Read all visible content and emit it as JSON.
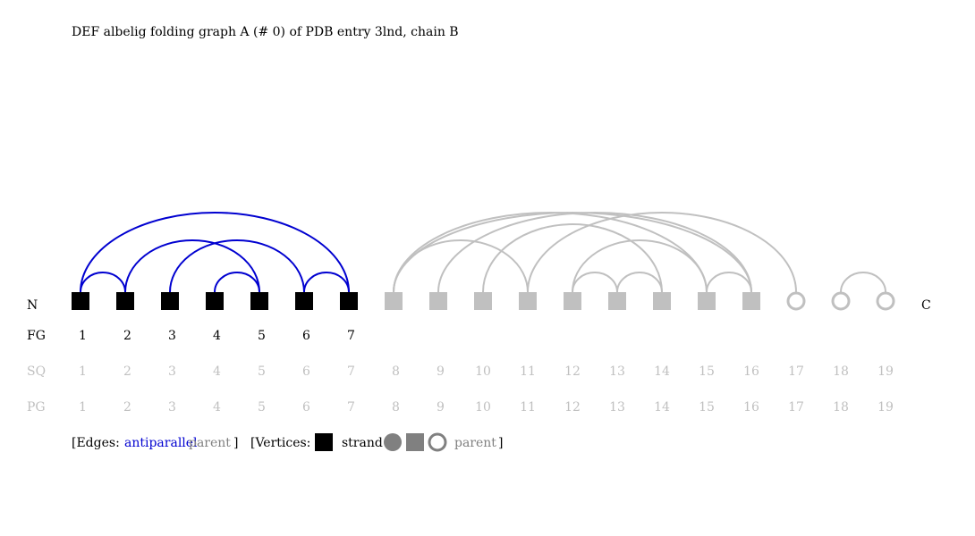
{
  "title": "DEF albelig folding graph A (# 0) of PDB entry 3lnd, chain B",
  "terminal_labels": {
    "n": "N",
    "c": "C"
  },
  "row_labels": {
    "fg": "FG",
    "sq": "SQ",
    "pg": "PG"
  },
  "colors": {
    "strand": "#000000",
    "parent": "#c0c0c0",
    "antiparallel": "#0000d0",
    "legend_parent_vertex": "#808080",
    "muted_text": "#c0c0c0"
  },
  "vertices": [
    {
      "sq": "1",
      "pg": "1",
      "fg": "1",
      "shape": "square",
      "kind": "strand"
    },
    {
      "sq": "2",
      "pg": "2",
      "fg": "2",
      "shape": "square",
      "kind": "strand"
    },
    {
      "sq": "3",
      "pg": "3",
      "fg": "3",
      "shape": "square",
      "kind": "strand"
    },
    {
      "sq": "4",
      "pg": "4",
      "fg": "4",
      "shape": "square",
      "kind": "strand"
    },
    {
      "sq": "5",
      "pg": "5",
      "fg": "5",
      "shape": "square",
      "kind": "strand"
    },
    {
      "sq": "6",
      "pg": "6",
      "fg": "6",
      "shape": "square",
      "kind": "strand"
    },
    {
      "sq": "7",
      "pg": "7",
      "fg": "7",
      "shape": "square",
      "kind": "strand"
    },
    {
      "sq": "8",
      "pg": "8",
      "fg": "",
      "shape": "square",
      "kind": "parent"
    },
    {
      "sq": "9",
      "pg": "9",
      "fg": "",
      "shape": "square",
      "kind": "parent"
    },
    {
      "sq": "10",
      "pg": "10",
      "fg": "",
      "shape": "square",
      "kind": "parent"
    },
    {
      "sq": "11",
      "pg": "11",
      "fg": "",
      "shape": "square",
      "kind": "parent"
    },
    {
      "sq": "12",
      "pg": "12",
      "fg": "",
      "shape": "square",
      "kind": "parent"
    },
    {
      "sq": "13",
      "pg": "13",
      "fg": "",
      "shape": "square",
      "kind": "parent"
    },
    {
      "sq": "14",
      "pg": "14",
      "fg": "",
      "shape": "square",
      "kind": "parent"
    },
    {
      "sq": "15",
      "pg": "15",
      "fg": "",
      "shape": "square",
      "kind": "parent"
    },
    {
      "sq": "16",
      "pg": "16",
      "fg": "",
      "shape": "square",
      "kind": "parent"
    },
    {
      "sq": "17",
      "pg": "17",
      "fg": "",
      "shape": "ring",
      "kind": "parent"
    },
    {
      "sq": "18",
      "pg": "18",
      "fg": "",
      "shape": "ring",
      "kind": "parent"
    },
    {
      "sq": "19",
      "pg": "19",
      "fg": "",
      "shape": "ring",
      "kind": "parent"
    }
  ],
  "edges": [
    {
      "from": 1,
      "to": 2,
      "kind": "antiparallel"
    },
    {
      "from": 1,
      "to": 7,
      "kind": "antiparallel"
    },
    {
      "from": 2,
      "to": 5,
      "kind": "antiparallel"
    },
    {
      "from": 3,
      "to": 6,
      "kind": "antiparallel"
    },
    {
      "from": 4,
      "to": 5,
      "kind": "antiparallel"
    },
    {
      "from": 6,
      "to": 7,
      "kind": "antiparallel"
    },
    {
      "from": 8,
      "to": 11,
      "kind": "parent"
    },
    {
      "from": 8,
      "to": 15,
      "kind": "parent"
    },
    {
      "from": 8,
      "to": 16,
      "kind": "parent"
    },
    {
      "from": 9,
      "to": 16,
      "kind": "parent"
    },
    {
      "from": 10,
      "to": 14,
      "kind": "parent"
    },
    {
      "from": 11,
      "to": 17,
      "kind": "parent"
    },
    {
      "from": 12,
      "to": 13,
      "kind": "parent"
    },
    {
      "from": 12,
      "to": 15,
      "kind": "parent"
    },
    {
      "from": 13,
      "to": 14,
      "kind": "parent"
    },
    {
      "from": 15,
      "to": 16,
      "kind": "parent"
    },
    {
      "from": 18,
      "to": 19,
      "kind": "parent"
    }
  ],
  "legend": {
    "edges_open": "[Edges:",
    "edges_antiparallel": "antiparallel",
    "edges_parent": "parent",
    "edges_close": "]",
    "vertices_open": "[Vertices:",
    "vertices_strand": "strand",
    "vertices_parent": "parent",
    "vertices_close": "]"
  }
}
